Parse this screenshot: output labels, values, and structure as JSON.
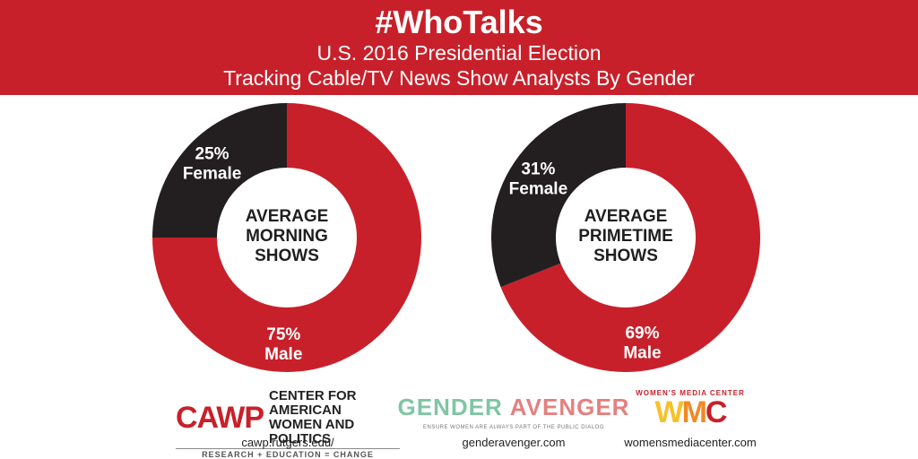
{
  "header": {
    "hashtag": "#WhoTalks",
    "subtitle_line1": "U.S. 2016 Presidential Election",
    "subtitle_line2": "Tracking Cable/TV News Show Analysts By Gender"
  },
  "colors": {
    "red": "#c8202a",
    "black": "#231f20",
    "white": "#ffffff"
  },
  "chart_data": [
    {
      "type": "pie",
      "center_label": [
        "AVERAGE",
        "MORNING",
        "SHOWS"
      ],
      "slices": [
        {
          "name": "Female",
          "value": 25,
          "label_pct": "25%",
          "color": "#231f20"
        },
        {
          "name": "Male",
          "value": 75,
          "label_pct": "75%",
          "color": "#c8202a"
        }
      ]
    },
    {
      "type": "pie",
      "center_label": [
        "AVERAGE",
        "PRIMETIME",
        "SHOWS"
      ],
      "slices": [
        {
          "name": "Female",
          "value": 31,
          "label_pct": "31%",
          "color": "#231f20"
        },
        {
          "name": "Male",
          "value": 69,
          "label_pct": "69%",
          "color": "#c8202a"
        }
      ]
    }
  ],
  "logos": {
    "cawp": {
      "mark": "CAWP",
      "line1": "CENTER FOR AMERICAN",
      "line2": "WOMEN AND POLITICS",
      "tagline": "RESEARCH + EDUCATION = CHANGE",
      "url": "cawp.rutgers.edu/"
    },
    "ga": {
      "word_left": "GENDER",
      "word_right": "AVENGER",
      "tagline": "ENSURE WOMEN ARE ALWAYS PART OF THE PUBLIC DIALOG",
      "url": "genderavenger.com"
    },
    "wmc": {
      "top": "WOMEN'S MEDIA CENTER",
      "mark": "WMC",
      "url": "womensmediacenter.com"
    }
  }
}
